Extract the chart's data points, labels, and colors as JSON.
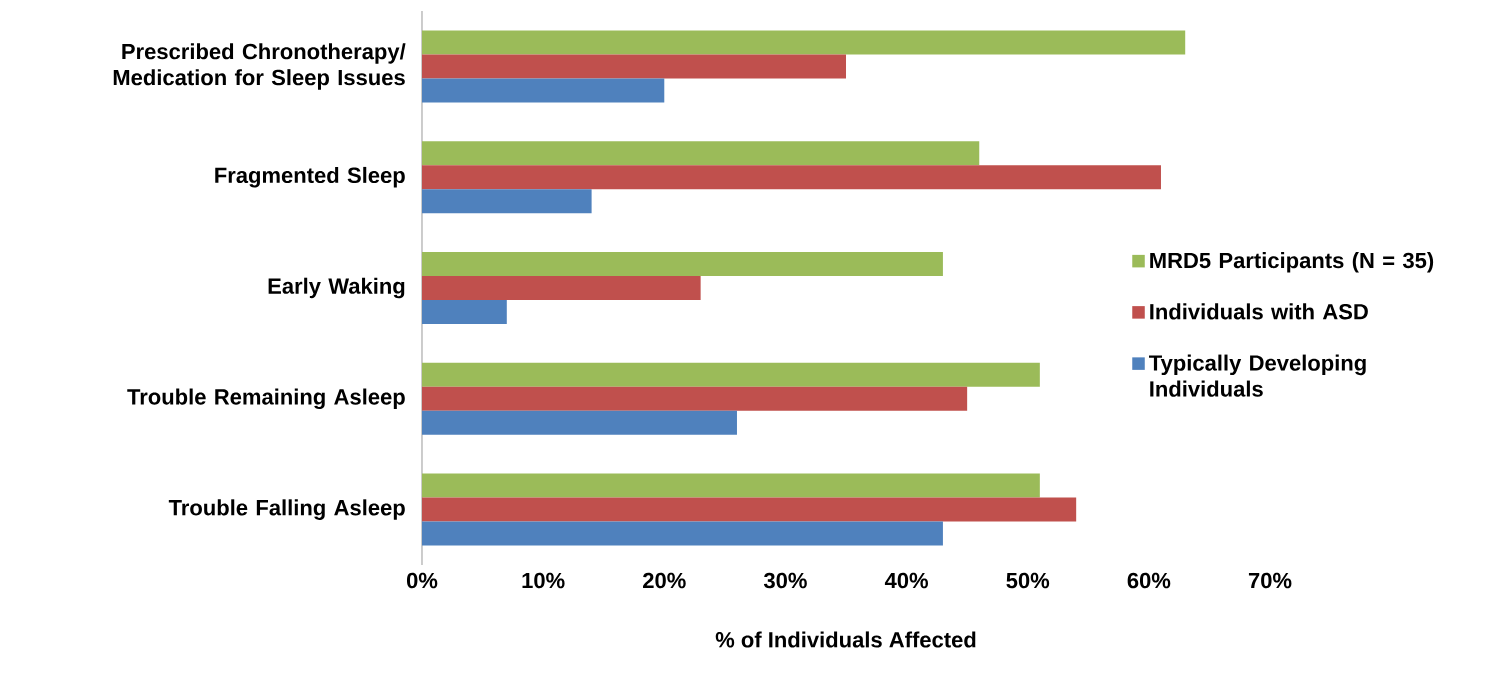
{
  "chart_data": {
    "type": "bar",
    "orientation": "horizontal",
    "xlabel": "% of Individuals Affected",
    "categories": [
      "Prescribed Chronotherapy/ Medication for Sleep Issues",
      "Fragmented Sleep",
      "Early Waking",
      "Trouble Remaining Asleep",
      "Trouble Falling Asleep"
    ],
    "series": [
      {
        "name": "MRD5 Participants (N = 35)",
        "color": "#9bbb59",
        "values": [
          63,
          46,
          43,
          51,
          51
        ]
      },
      {
        "name": "Individuals with ASD",
        "color": "#c0504d",
        "values": [
          35,
          61,
          23,
          45,
          54
        ]
      },
      {
        "name": "Typically Developing Individuals",
        "color": "#4f81bd",
        "values": [
          20,
          14,
          7,
          26,
          43
        ]
      }
    ],
    "xlim": [
      0,
      70
    ],
    "xticks": [
      {
        "value": 0,
        "label": "0%"
      },
      {
        "value": 10,
        "label": "10%"
      },
      {
        "value": 20,
        "label": "20%"
      },
      {
        "value": 30,
        "label": "30%"
      },
      {
        "value": 40,
        "label": "40%"
      },
      {
        "value": 50,
        "label": "50%"
      },
      {
        "value": 60,
        "label": "60%"
      },
      {
        "value": 70,
        "label": "70%"
      }
    ],
    "legend": "right"
  }
}
